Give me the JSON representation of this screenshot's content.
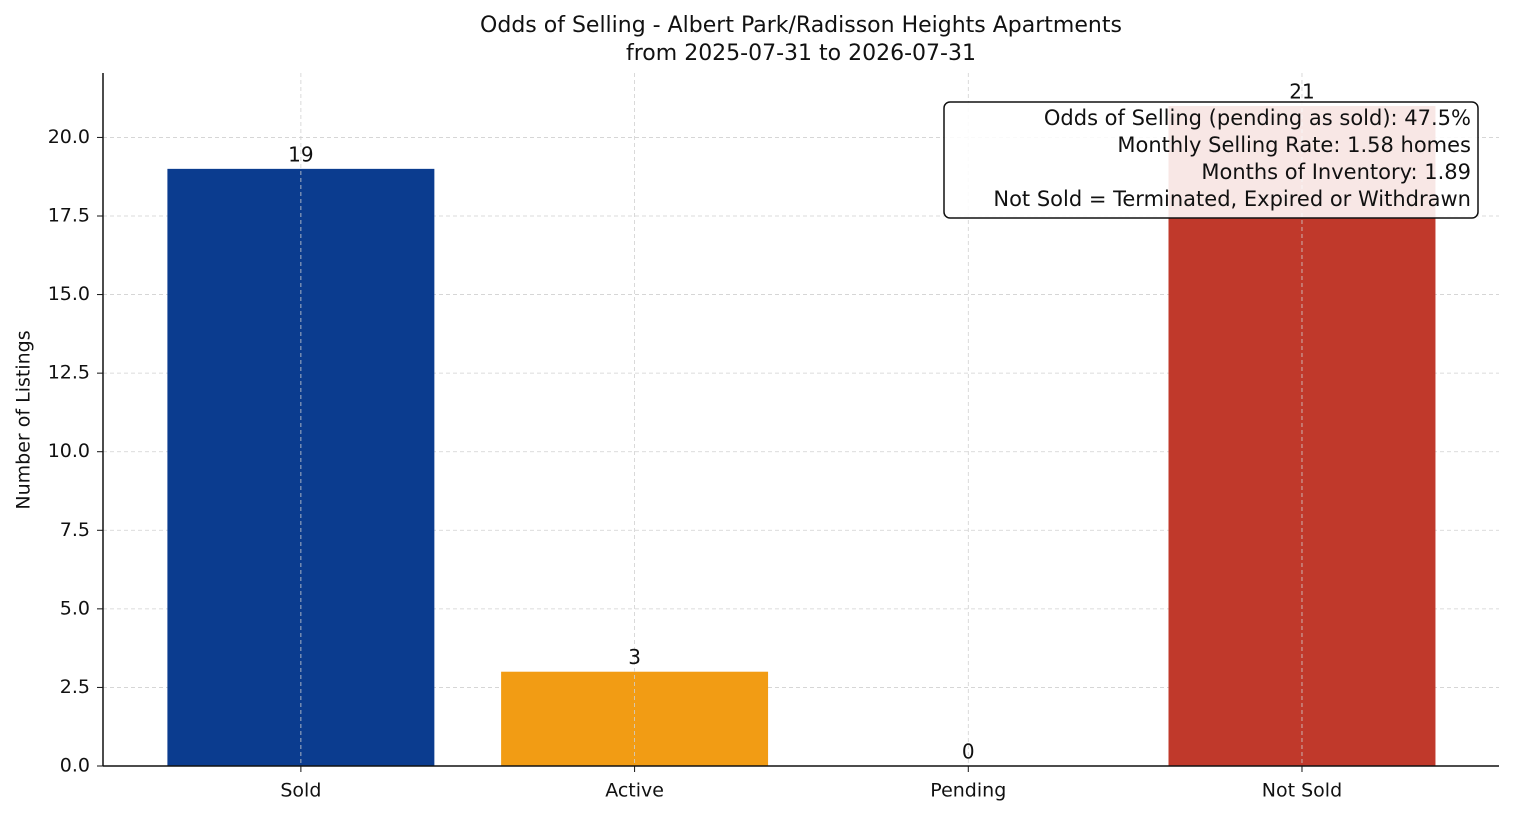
{
  "chart_data": {
    "type": "bar",
    "title": "Odds of Selling - Albert Park/Radisson Heights Apartments",
    "subtitle": "from 2025-07-31 to 2026-07-31",
    "y_label": "Number of Listings",
    "categories": [
      "Sold",
      "Active",
      "Pending",
      "Not Sold"
    ],
    "values": [
      19,
      3,
      0,
      21
    ],
    "colors": [
      "#0b3c8f",
      "#f29c14",
      "#2e8b57",
      "#c0392b"
    ],
    "ylim": [
      0,
      22.05
    ],
    "yticks": [
      {
        "value": 0,
        "label": "0.0"
      },
      {
        "value": 2.5,
        "label": "2.5"
      },
      {
        "value": 5,
        "label": "5.0"
      },
      {
        "value": 7.5,
        "label": "7.5"
      },
      {
        "value": 10,
        "label": "10.0"
      },
      {
        "value": 12.5,
        "label": "12.5"
      },
      {
        "value": 15,
        "label": "15.0"
      },
      {
        "value": 17.5,
        "label": "17.5"
      },
      {
        "value": 20,
        "label": "20.0"
      }
    ],
    "grid": true,
    "annotation": [
      "Odds of Selling (pending as sold): 47.5%",
      "Monthly Selling Rate: 1.58 homes",
      "Months of Inventory: 1.89",
      "Not Sold = Terminated, Expired or Withdrawn"
    ]
  }
}
